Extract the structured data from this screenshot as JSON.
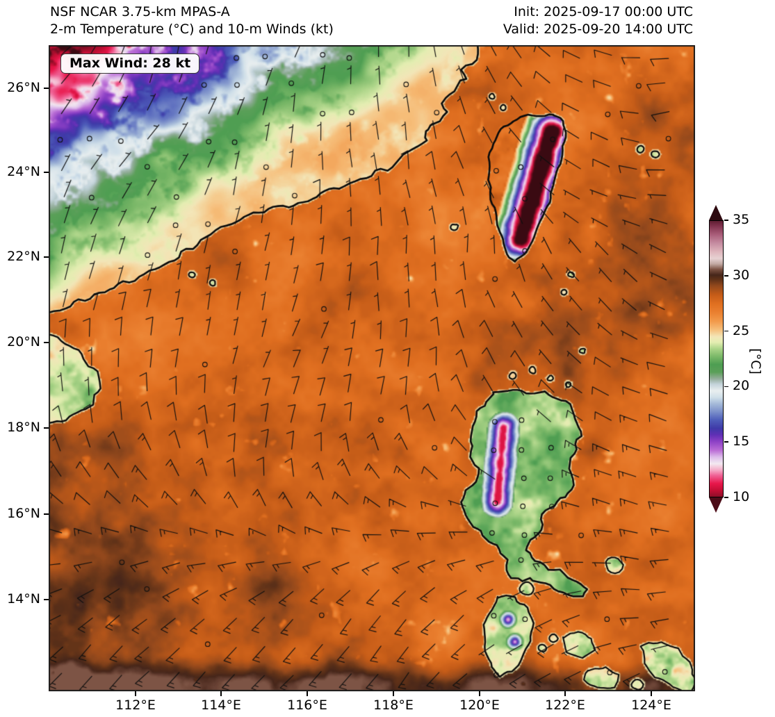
{
  "header": {
    "model": "NSF NCAR 3.75-km MPAS-A",
    "field": "2-m Temperature (°C) and 10-m Winds (kt)",
    "init": "Init: 2025-09-17 00:00 UTC",
    "valid": "Valid: 2025-09-20 14:00 UTC"
  },
  "map": {
    "max_wind_label": "Max Wind: 28 kt"
  },
  "axes": {
    "x": [
      {
        "label": "112°E",
        "px": 195
      },
      {
        "label": "114°E",
        "px": 318
      },
      {
        "label": "116°E",
        "px": 442
      },
      {
        "label": "118°E",
        "px": 566
      },
      {
        "label": "120°E",
        "px": 690
      },
      {
        "label": "122°E",
        "px": 813
      },
      {
        "label": "124°E",
        "px": 937
      }
    ],
    "y": [
      {
        "label": "26°N",
        "px": 127
      },
      {
        "label": "24°N",
        "px": 248
      },
      {
        "label": "22°N",
        "px": 370
      },
      {
        "label": "20°N",
        "px": 493
      },
      {
        "label": "18°N",
        "px": 616
      },
      {
        "label": "16°N",
        "px": 740
      },
      {
        "label": "14°N",
        "px": 863
      }
    ]
  },
  "colorbar": {
    "unit": "[°C]",
    "min": 10,
    "max": 35,
    "tick_values": [
      35,
      30,
      25,
      20,
      15,
      10
    ],
    "over_color": "#2e0a10",
    "under_color": "#4c0c18",
    "top_color": "#5e1e31",
    "stops": [
      [
        9.0,
        "#3a0a12"
      ],
      [
        10,
        "#8f0e28"
      ],
      [
        10.6,
        "#c50e35"
      ],
      [
        11.2,
        "#e8174b"
      ],
      [
        11.9,
        "#ef5e92"
      ],
      [
        12.4,
        "#f5a9c6"
      ],
      [
        13.0,
        "#f3e9f1"
      ],
      [
        13.6,
        "#ddbceb"
      ],
      [
        14.2,
        "#bb6ed6"
      ],
      [
        15.0,
        "#8d41c6"
      ],
      [
        15.6,
        "#602fb5"
      ],
      [
        16.2,
        "#3f3aa8"
      ],
      [
        17.0,
        "#5060bb"
      ],
      [
        17.7,
        "#7b8fca"
      ],
      [
        18.4,
        "#a3b8d8"
      ],
      [
        19.0,
        "#cfdfe9"
      ],
      [
        19.6,
        "#e9eff0"
      ],
      [
        20.2,
        "#c3d3da"
      ],
      [
        20.7,
        "#93ad9a"
      ],
      [
        21.3,
        "#5a9f58"
      ],
      [
        22.0,
        "#4e9e52"
      ],
      [
        22.7,
        "#7ab868"
      ],
      [
        23.4,
        "#abd488"
      ],
      [
        24.0,
        "#e4eeb2"
      ],
      [
        24.5,
        "#f3e6b8"
      ],
      [
        25.1,
        "#f6c17e"
      ],
      [
        25.9,
        "#f29a4b"
      ],
      [
        26.7,
        "#ea8030"
      ],
      [
        27.5,
        "#e06f20"
      ],
      [
        28.3,
        "#c55c18"
      ],
      [
        29.1,
        "#94491c"
      ],
      [
        29.7,
        "#5e3118"
      ],
      [
        30.1,
        "#46261a"
      ],
      [
        30.6,
        "#7c5243"
      ],
      [
        31.1,
        "#c2a8a2"
      ],
      [
        31.6,
        "#e7d2d3"
      ],
      [
        32.2,
        "#dfb6bd"
      ],
      [
        33.0,
        "#c58ba0"
      ],
      [
        33.8,
        "#a85b78"
      ],
      [
        34.6,
        "#7c2f4a"
      ],
      [
        35.4,
        "#4a1322"
      ],
      [
        36.5,
        "#2e0a10"
      ]
    ]
  },
  "style": {
    "coastline": "#0b0b0b",
    "barb": "#101010",
    "frame": "#1c1c1c",
    "badge_border": "#3a3a3a"
  },
  "chart_data": {
    "type": "heatmap",
    "title": "NSF NCAR 3.75-km MPAS-A",
    "subtitle": "2-m Temperature (°C) and 10-m Winds (kt)",
    "init": "2025-09-17 00:00 UTC",
    "valid": "2025-09-20 14:00 UTC",
    "max_wind_kt": 28,
    "x_ticks": [
      "112°E",
      "114°E",
      "116°E",
      "118°E",
      "120°E",
      "122°E",
      "124°E"
    ],
    "y_ticks": [
      "26°N",
      "24°N",
      "22°N",
      "20°N",
      "18°N",
      "16°N",
      "14°N"
    ],
    "colorbar_unit": "[°C]",
    "colorbar_ticks": [
      10,
      15,
      20,
      25,
      30,
      35
    ],
    "colorbar_range": [
      10,
      35
    ],
    "colorbar_extend": "both",
    "wind_barbs": true,
    "legend_position": "right",
    "grid": false,
    "regions_visible": [
      "Southeast China coast",
      "Taiwan",
      "Taiwan Strait",
      "South China Sea",
      "Luzon and Philippine islands",
      "Hainan / Leizhou coast"
    ],
    "field_summary": {
      "open_sea_temp_c": "27-30",
      "china_inland_temp_c": "10-24 (coldest purple patches in northwest highlands)",
      "taiwan_mountain_core_c": "below 10",
      "luzon_cordillera_c": "12-16"
    }
  }
}
